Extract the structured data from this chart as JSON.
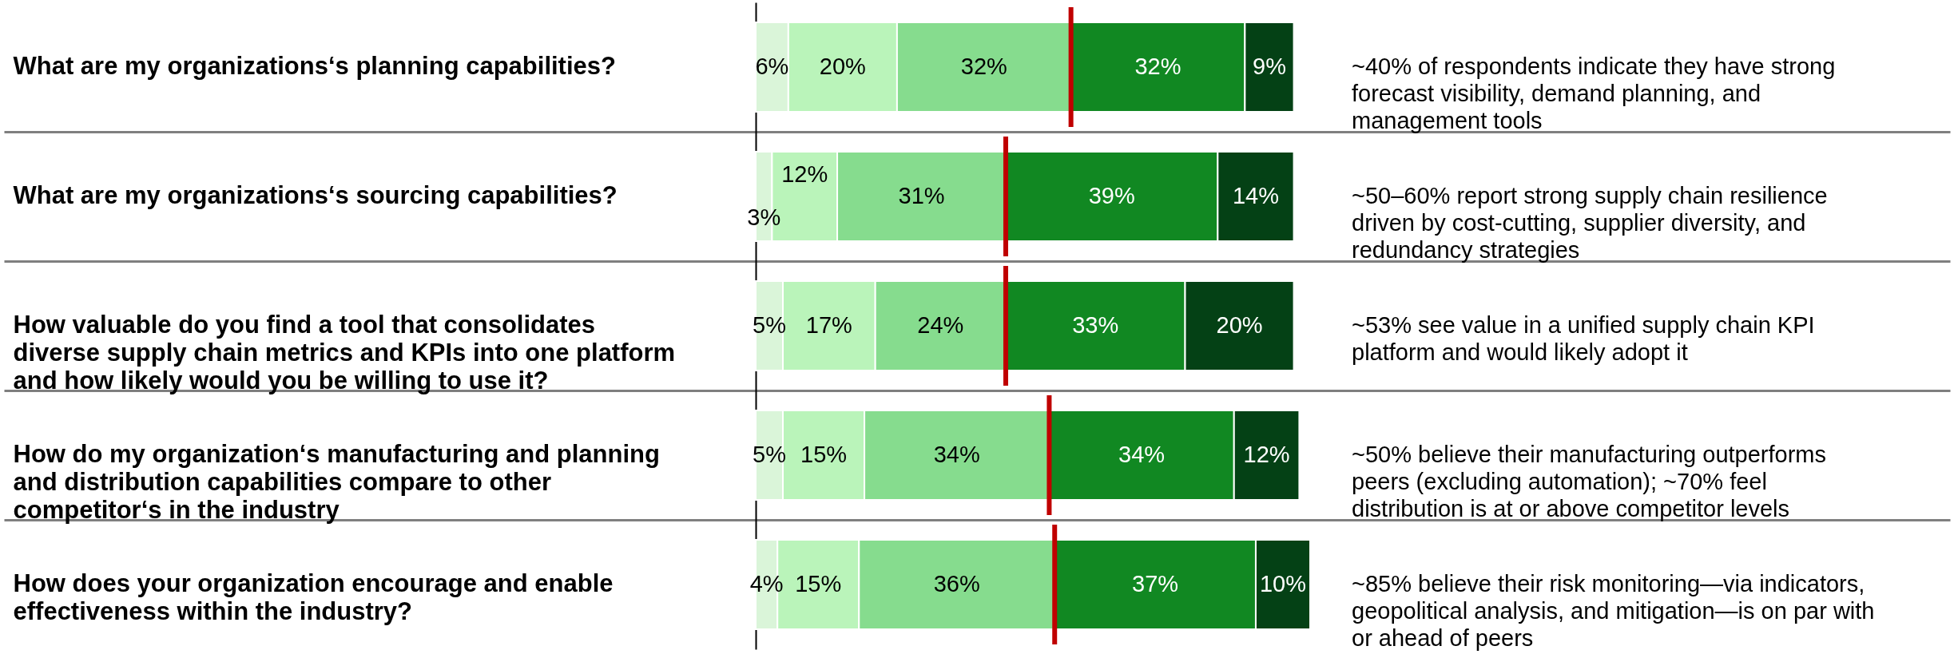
{
  "chart_data": {
    "type": "bar",
    "orientation": "horizontal",
    "stacked": true,
    "categories": [
      "What are my organizations‘s planning capabilities?",
      "What are my organizations‘s sourcing capabilities?",
      "How valuable do you find a tool that consolidates diverse supply chain metrics and KPIs into one platform and how likely would you be willing to use it?",
      "How do my organization‘s manufacturing and planning and distribution capabilities compare to other competitor‘s in the industry",
      "How does your organization encourage and enable effectiveness within the industry?"
    ],
    "series": [
      {
        "color": "#daf5d9",
        "values": [
          6,
          3,
          5,
          5,
          4
        ],
        "value_labels": [
          "6%",
          "3%",
          "5%",
          "5%",
          "4%"
        ]
      },
      {
        "color": "#baf4ba",
        "values": [
          20,
          12,
          17,
          15,
          15
        ],
        "value_labels": [
          "20%",
          "12%",
          "17%",
          "15%",
          "15%"
        ]
      },
      {
        "color": "#86dc8e",
        "values": [
          32,
          31,
          24,
          34,
          36
        ],
        "value_labels": [
          "32%",
          "31%",
          "24%",
          "34%",
          "36%"
        ]
      },
      {
        "color": "#118822",
        "values": [
          32,
          39,
          33,
          34,
          37
        ],
        "value_labels": [
          "32%",
          "39%",
          "33%",
          "34%",
          "37%"
        ]
      },
      {
        "color": "#044115",
        "values": [
          9,
          14,
          20,
          12,
          10
        ],
        "value_labels": [
          "9%",
          "14%",
          "20%",
          "12%",
          "10%"
        ]
      }
    ],
    "ref_lines": [
      {
        "axis": "x",
        "value": 58,
        "color": "#c00000"
      },
      {
        "axis": "x",
        "value": 46,
        "color": "#c00000"
      },
      {
        "axis": "x",
        "value": 54,
        "color": "#c00000"
      },
      {
        "axis": "x",
        "value": 55,
        "color": "#c00000"
      }
    ],
    "xlim": [
      0,
      102
    ],
    "grid": "y",
    "annotations": [
      "~40% of respondents indicate they have strong forecast visibility, demand planning, and management tools",
      "~50–60% report strong supply chain resilience driven by cost-cutting, supplier diversity, and redundancy strategies",
      "~53% see value in a unified supply chain KPI platform and would likely adopt it",
      "~50% believe their manufacturing outperforms peers (excluding automation); ~70% feel distribution is at or above competitor levels",
      "~85% believe their risk monitoring—via indicators, geopolitical analysis, and mitigation—is on par with or ahead of peers"
    ]
  }
}
